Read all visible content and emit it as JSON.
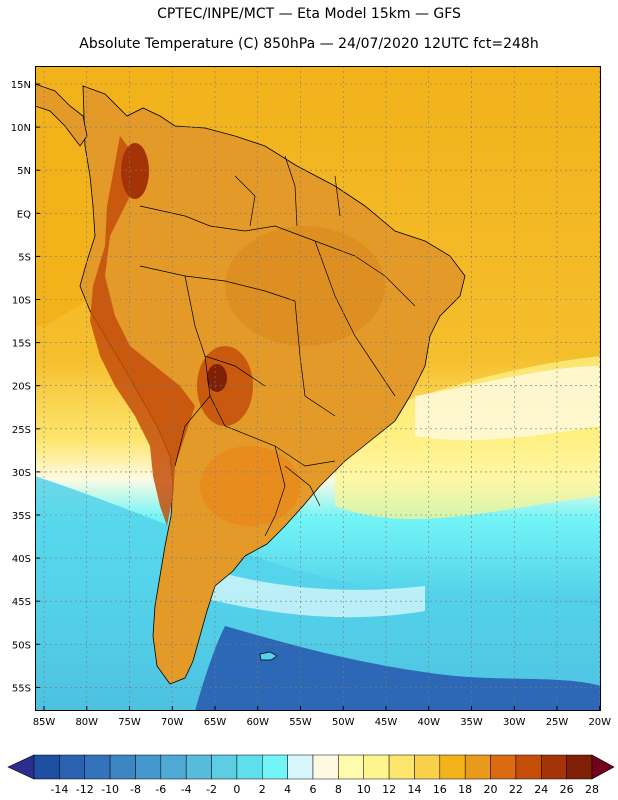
{
  "header": {
    "line1": "CPTEC/INPE/MCT —  Eta Model 15km — GFS",
    "line2": "Absolute Temperature (C) 850hPa — 24/07/2020 12UTC fct=248h"
  },
  "map": {
    "lat_labels": [
      "15N",
      "10N",
      "5N",
      "EQ",
      "5S",
      "10S",
      "15S",
      "20S",
      "25S",
      "30S",
      "35S",
      "40S",
      "45S",
      "50S",
      "55S"
    ],
    "lon_labels": [
      "85W",
      "80W",
      "75W",
      "70W",
      "65W",
      "60W",
      "55W",
      "50W",
      "45W",
      "40W",
      "35W",
      "30W",
      "25W",
      "20W"
    ],
    "land_color": "#e39a28",
    "ocean_warm_color": "#f2b21a",
    "ocean_cool_color": "#54d2ea",
    "deep_cold_color": "#2c68b6",
    "border_color": "#000000",
    "grid_color": "#7a7a7a"
  },
  "colorbar": {
    "labels": [
      "-14",
      "-12",
      "-10",
      "-8",
      "-6",
      "-4",
      "-2",
      "0",
      "2",
      "4",
      "6",
      "8",
      "10",
      "12",
      "14",
      "16",
      "18",
      "20",
      "22",
      "24",
      "26",
      "28"
    ],
    "colors": [
      "#1f4fa3",
      "#2a61b0",
      "#3373bb",
      "#3c86c4",
      "#4598cc",
      "#4eaad4",
      "#56bcdc",
      "#5ccde4",
      "#5fdfec",
      "#73f5f7",
      "#d6f6fb",
      "#fefae2",
      "#fffbac",
      "#fff58d",
      "#fde66e",
      "#f8d04a",
      "#f2b21a",
      "#e99a1a",
      "#dc6a10",
      "#c44d0a",
      "#a43308",
      "#7f1f06"
    ],
    "low_arrow_color": "#2b2e8f",
    "high_arrow_color": "#75001c"
  }
}
